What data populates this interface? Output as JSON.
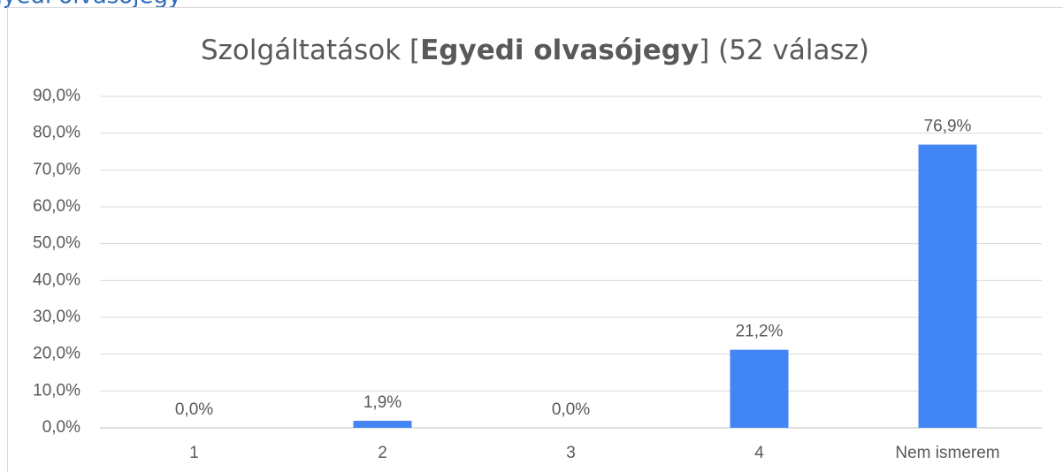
{
  "heading": "Egyedi olvasójegy",
  "chart_data": {
    "type": "bar",
    "title": [
      {
        "text": "Szolgáltatások [",
        "bold": false
      },
      {
        "text": "Egyedi olvasójegy",
        "bold": true
      },
      {
        "text": "] (52 válasz)",
        "bold": false
      }
    ],
    "categories": [
      "1",
      "2",
      "3",
      "4",
      "Nem ismerem"
    ],
    "values": [
      0,
      1.9,
      0,
      21.2,
      76.9
    ],
    "value_labels": [
      "0,0%",
      "1,9%",
      "0,0%",
      "21,2%",
      "76,9%"
    ],
    "color": "#4285f4",
    "ylim": [
      0,
      90
    ],
    "yticks": [
      {
        "value": 0,
        "label": "0,0%"
      },
      {
        "value": 10,
        "label": "10,0%"
      },
      {
        "value": 20,
        "label": "20,0%"
      },
      {
        "value": 30,
        "label": "30,0%"
      },
      {
        "value": 40,
        "label": "40,0%"
      },
      {
        "value": 50,
        "label": "50,0%"
      },
      {
        "value": 60,
        "label": "60,0%"
      },
      {
        "value": 70,
        "label": "70,0%"
      },
      {
        "value": 80,
        "label": "80,0%"
      },
      {
        "value": 90,
        "label": "90,0%"
      }
    ],
    "grid": true
  }
}
